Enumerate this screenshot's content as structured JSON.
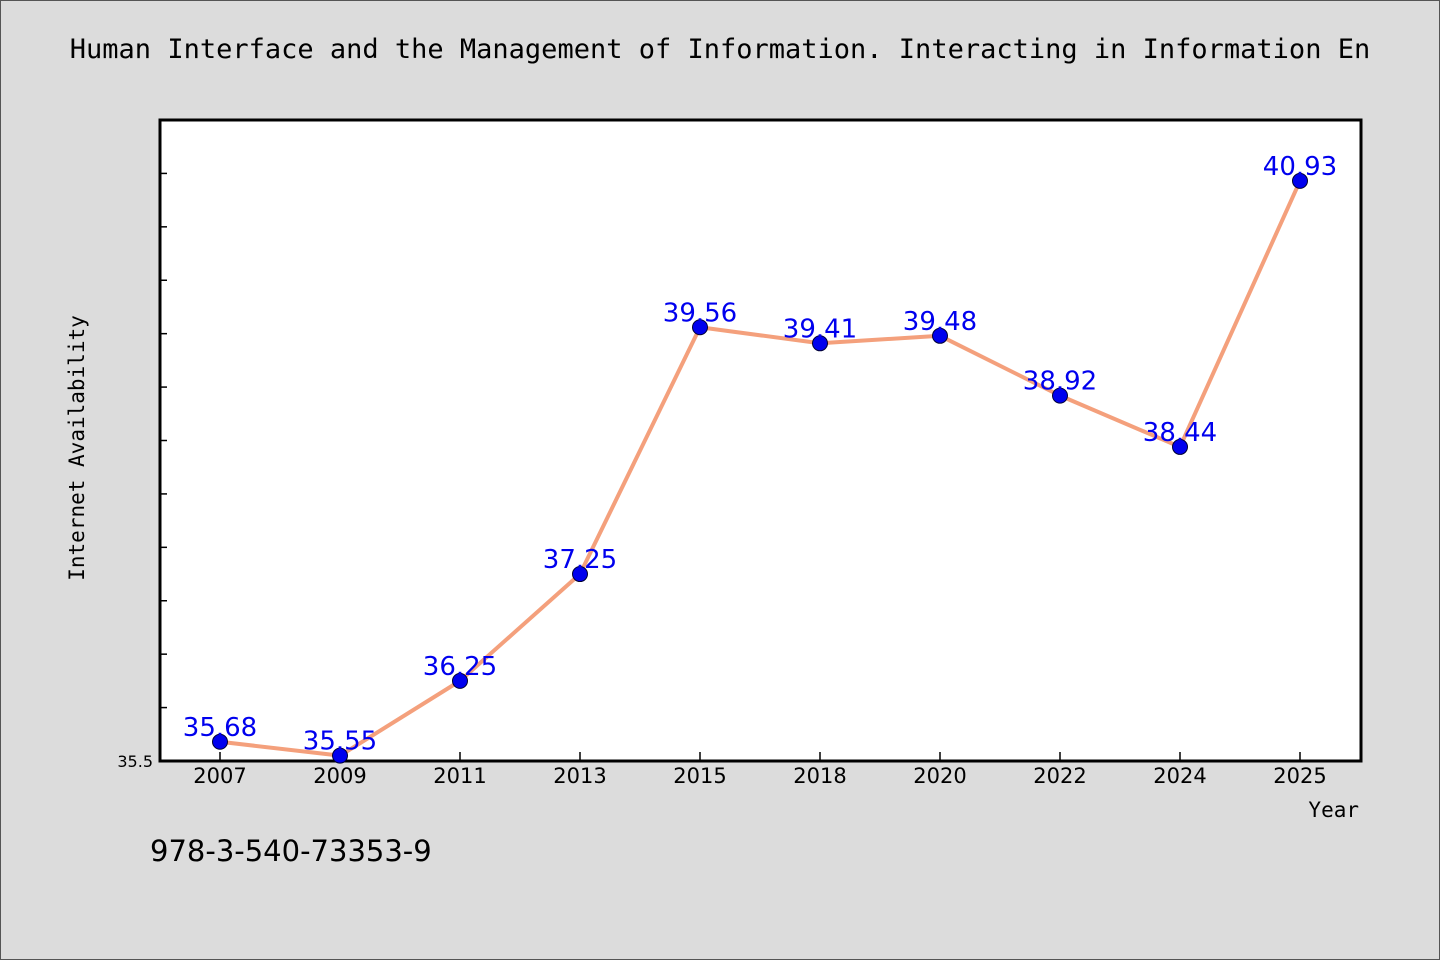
{
  "title": "Human Interface and the Management of Information. Interacting in Information En",
  "footer_text": "978-3-540-73353-9",
  "chart_data": {
    "type": "line",
    "title": "Human Interface and the Management of Information. Interacting in Information En",
    "xlabel": "Year",
    "ylabel": "Internet Availability",
    "categories": [
      "2007",
      "2009",
      "2011",
      "2013",
      "2015",
      "2018",
      "2020",
      "2022",
      "2024",
      "2025"
    ],
    "series": [
      {
        "values": [
          35.68,
          35.55,
          36.25,
          37.25,
          39.56,
          39.41,
          39.48,
          38.92,
          38.44,
          40.93
        ],
        "labels": [
          "35.68",
          "35.55",
          "36.25",
          "37.25",
          "39.56",
          "39.41",
          "39.48",
          "38.92",
          "38.44",
          "40.93"
        ],
        "line_color": "#f4a07c",
        "marker_color": "#0000ee",
        "label_color": "#0000ee"
      }
    ],
    "ylim": [
      35.5,
      41.5
    ],
    "y_tick_labels": [
      "35.5"
    ],
    "y_minor_step": 0.5,
    "grid": false,
    "legend": "none"
  }
}
